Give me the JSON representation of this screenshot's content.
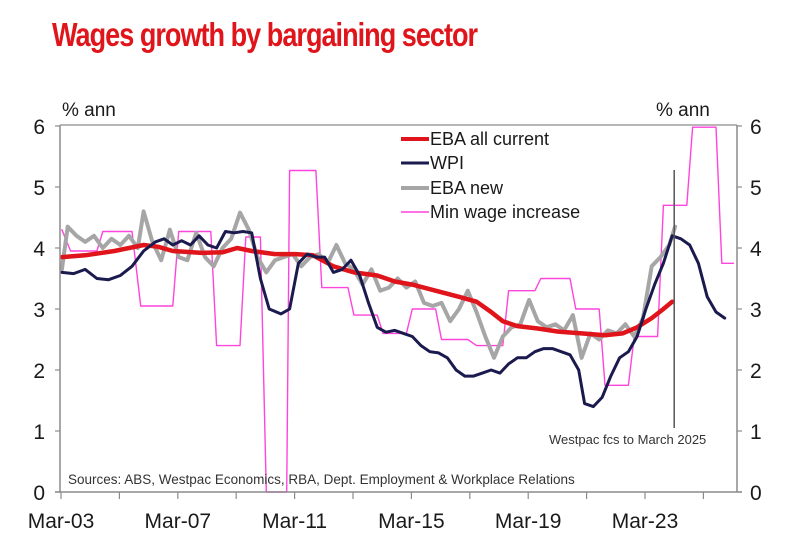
{
  "chart_data": {
    "type": "line",
    "title": "Wages growth by bargaining sector",
    "ylabel_left": "% ann",
    "ylabel_right": "% ann",
    "xlabel": "",
    "ylim": [
      0,
      6
    ],
    "yticks": [
      0,
      1,
      2,
      3,
      4,
      5,
      6
    ],
    "xlim": [
      2003.17,
      2026.4
    ],
    "xticks": [
      2003.17,
      2005.17,
      2007.17,
      2009.17,
      2011.17,
      2013.17,
      2015.17,
      2017.17,
      2019.17,
      2021.17,
      2023.17,
      2025.17
    ],
    "xtick_labels": [
      {
        "x": 2003.17,
        "label": "Mar-03"
      },
      {
        "x": 2007.17,
        "label": "Mar-07"
      },
      {
        "x": 2011.17,
        "label": "Mar-11"
      },
      {
        "x": 2015.17,
        "label": "Mar-15"
      },
      {
        "x": 2019.17,
        "label": "Mar-19"
      },
      {
        "x": 2023.17,
        "label": "Mar-23"
      }
    ],
    "grid": false,
    "legend": {
      "position": "top-center",
      "entries": [
        "EBA all current",
        "WPI",
        "EBA new",
        "Min wage increase"
      ]
    },
    "annotations": [
      {
        "text": "Westpac fcs to March 2025",
        "x": 2024.17
      },
      {
        "text": "Sources: ABS, Westpac Economics, RBA, Dept. Employment & Workplace Relations"
      }
    ],
    "forecast_marker_x": 2024.17,
    "series": [
      {
        "name": "EBA all current",
        "color": "#e0151b",
        "points": [
          [
            2003.2,
            3.85
          ],
          [
            2004.0,
            3.88
          ],
          [
            2005.0,
            3.95
          ],
          [
            2006.0,
            4.05
          ],
          [
            2006.5,
            4.02
          ],
          [
            2007.0,
            3.95
          ],
          [
            2008.0,
            3.92
          ],
          [
            2008.7,
            3.93
          ],
          [
            2009.2,
            4.0
          ],
          [
            2009.7,
            3.95
          ],
          [
            2010.5,
            3.9
          ],
          [
            2011.2,
            3.9
          ],
          [
            2011.8,
            3.88
          ],
          [
            2012.5,
            3.7
          ],
          [
            2013.2,
            3.6
          ],
          [
            2014.0,
            3.55
          ],
          [
            2014.6,
            3.45
          ],
          [
            2015.2,
            3.4
          ],
          [
            2016.0,
            3.3
          ],
          [
            2016.8,
            3.2
          ],
          [
            2017.4,
            3.12
          ],
          [
            2017.9,
            2.95
          ],
          [
            2018.3,
            2.8
          ],
          [
            2018.8,
            2.72
          ],
          [
            2019.5,
            2.68
          ],
          [
            2020.2,
            2.63
          ],
          [
            2021.0,
            2.6
          ],
          [
            2021.8,
            2.57
          ],
          [
            2022.4,
            2.6
          ],
          [
            2022.9,
            2.7
          ],
          [
            2023.4,
            2.85
          ],
          [
            2023.8,
            3.0
          ],
          [
            2024.1,
            3.12
          ]
        ]
      },
      {
        "name": "WPI",
        "color": "#1a1a4e",
        "points": [
          [
            2003.2,
            3.6
          ],
          [
            2003.6,
            3.58
          ],
          [
            2004.0,
            3.65
          ],
          [
            2004.4,
            3.5
          ],
          [
            2004.8,
            3.48
          ],
          [
            2005.2,
            3.55
          ],
          [
            2005.6,
            3.7
          ],
          [
            2006.0,
            3.95
          ],
          [
            2006.4,
            4.1
          ],
          [
            2006.7,
            4.15
          ],
          [
            2007.0,
            4.05
          ],
          [
            2007.3,
            4.12
          ],
          [
            2007.6,
            4.05
          ],
          [
            2007.9,
            4.2
          ],
          [
            2008.2,
            4.05
          ],
          [
            2008.5,
            4.0
          ],
          [
            2008.8,
            4.27
          ],
          [
            2009.1,
            4.25
          ],
          [
            2009.4,
            4.27
          ],
          [
            2009.7,
            4.25
          ],
          [
            2010.0,
            3.5
          ],
          [
            2010.3,
            3.0
          ],
          [
            2010.7,
            2.92
          ],
          [
            2011.0,
            3.0
          ],
          [
            2011.3,
            3.75
          ],
          [
            2011.6,
            3.9
          ],
          [
            2011.9,
            3.85
          ],
          [
            2012.2,
            3.85
          ],
          [
            2012.5,
            3.6
          ],
          [
            2012.8,
            3.65
          ],
          [
            2013.1,
            3.8
          ],
          [
            2013.4,
            3.55
          ],
          [
            2013.7,
            3.1
          ],
          [
            2014.0,
            2.7
          ],
          [
            2014.3,
            2.62
          ],
          [
            2014.6,
            2.65
          ],
          [
            2014.9,
            2.6
          ],
          [
            2015.2,
            2.55
          ],
          [
            2015.5,
            2.4
          ],
          [
            2015.8,
            2.3
          ],
          [
            2016.1,
            2.28
          ],
          [
            2016.4,
            2.2
          ],
          [
            2016.7,
            2.0
          ],
          [
            2017.0,
            1.9
          ],
          [
            2017.3,
            1.9
          ],
          [
            2017.6,
            1.95
          ],
          [
            2017.9,
            2.0
          ],
          [
            2018.2,
            1.95
          ],
          [
            2018.5,
            2.1
          ],
          [
            2018.8,
            2.2
          ],
          [
            2019.1,
            2.2
          ],
          [
            2019.4,
            2.3
          ],
          [
            2019.7,
            2.35
          ],
          [
            2020.0,
            2.35
          ],
          [
            2020.3,
            2.3
          ],
          [
            2020.6,
            2.25
          ],
          [
            2020.9,
            2.0
          ],
          [
            2021.1,
            1.45
          ],
          [
            2021.4,
            1.4
          ],
          [
            2021.7,
            1.55
          ],
          [
            2022.0,
            1.9
          ],
          [
            2022.3,
            2.2
          ],
          [
            2022.6,
            2.3
          ],
          [
            2022.9,
            2.55
          ],
          [
            2023.2,
            3.0
          ],
          [
            2023.5,
            3.4
          ],
          [
            2023.8,
            3.75
          ],
          [
            2024.1,
            4.2
          ],
          [
            2024.4,
            4.15
          ],
          [
            2024.7,
            4.05
          ],
          [
            2025.0,
            3.75
          ],
          [
            2025.3,
            3.2
          ],
          [
            2025.6,
            2.95
          ],
          [
            2025.9,
            2.85
          ]
        ]
      },
      {
        "name": "EBA new",
        "color": "#a6a6a6",
        "points": [
          [
            2003.2,
            3.65
          ],
          [
            2003.4,
            4.35
          ],
          [
            2003.7,
            4.2
          ],
          [
            2004.0,
            4.1
          ],
          [
            2004.3,
            4.2
          ],
          [
            2004.6,
            4.0
          ],
          [
            2004.9,
            4.15
          ],
          [
            2005.2,
            4.05
          ],
          [
            2005.5,
            4.2
          ],
          [
            2005.8,
            4.0
          ],
          [
            2006.0,
            4.6
          ],
          [
            2006.3,
            4.1
          ],
          [
            2006.6,
            3.8
          ],
          [
            2006.9,
            4.3
          ],
          [
            2007.2,
            3.85
          ],
          [
            2007.5,
            3.8
          ],
          [
            2007.8,
            4.25
          ],
          [
            2008.1,
            3.85
          ],
          [
            2008.4,
            3.7
          ],
          [
            2008.7,
            4.0
          ],
          [
            2009.0,
            4.15
          ],
          [
            2009.3,
            4.58
          ],
          [
            2009.6,
            4.3
          ],
          [
            2009.9,
            3.85
          ],
          [
            2010.2,
            3.6
          ],
          [
            2010.5,
            3.8
          ],
          [
            2010.8,
            3.85
          ],
          [
            2011.1,
            3.9
          ],
          [
            2011.4,
            3.7
          ],
          [
            2011.7,
            3.85
          ],
          [
            2012.0,
            3.9
          ],
          [
            2012.3,
            3.75
          ],
          [
            2012.6,
            4.05
          ],
          [
            2012.9,
            3.75
          ],
          [
            2013.2,
            3.65
          ],
          [
            2013.5,
            3.4
          ],
          [
            2013.8,
            3.65
          ],
          [
            2014.1,
            3.3
          ],
          [
            2014.4,
            3.35
          ],
          [
            2014.7,
            3.5
          ],
          [
            2015.0,
            3.35
          ],
          [
            2015.3,
            3.45
          ],
          [
            2015.6,
            3.1
          ],
          [
            2015.9,
            3.05
          ],
          [
            2016.2,
            3.1
          ],
          [
            2016.5,
            2.8
          ],
          [
            2016.8,
            3.0
          ],
          [
            2017.1,
            3.3
          ],
          [
            2017.4,
            2.95
          ],
          [
            2017.7,
            2.55
          ],
          [
            2018.0,
            2.2
          ],
          [
            2018.3,
            2.55
          ],
          [
            2018.6,
            2.7
          ],
          [
            2018.9,
            2.75
          ],
          [
            2019.2,
            3.15
          ],
          [
            2019.5,
            2.8
          ],
          [
            2019.8,
            2.7
          ],
          [
            2020.1,
            2.75
          ],
          [
            2020.4,
            2.65
          ],
          [
            2020.7,
            2.9
          ],
          [
            2021.0,
            2.2
          ],
          [
            2021.3,
            2.6
          ],
          [
            2021.6,
            2.5
          ],
          [
            2021.9,
            2.65
          ],
          [
            2022.2,
            2.6
          ],
          [
            2022.5,
            2.75
          ],
          [
            2022.8,
            2.55
          ],
          [
            2023.1,
            2.85
          ],
          [
            2023.4,
            3.7
          ],
          [
            2023.7,
            3.85
          ],
          [
            2024.0,
            4.05
          ],
          [
            2024.2,
            4.35
          ]
        ]
      },
      {
        "name": "Min wage increase",
        "color": "#ff44dd",
        "points": [
          [
            2003.2,
            4.3
          ],
          [
            2003.5,
            3.95
          ],
          [
            2004.4,
            3.95
          ],
          [
            2004.6,
            4.27
          ],
          [
            2005.6,
            4.27
          ],
          [
            2005.9,
            3.05
          ],
          [
            2007.0,
            3.05
          ],
          [
            2007.2,
            4.27
          ],
          [
            2008.3,
            4.27
          ],
          [
            2008.5,
            2.4
          ],
          [
            2009.3,
            2.4
          ],
          [
            2009.5,
            4.18
          ],
          [
            2010.0,
            4.18
          ],
          [
            2010.2,
            0.0
          ],
          [
            2010.9,
            0.0
          ],
          [
            2011.0,
            5.27
          ],
          [
            2011.9,
            5.27
          ],
          [
            2012.1,
            3.35
          ],
          [
            2013.0,
            3.35
          ],
          [
            2013.2,
            2.9
          ],
          [
            2014.0,
            2.9
          ],
          [
            2014.2,
            2.6
          ],
          [
            2015.0,
            2.6
          ],
          [
            2015.2,
            3.0
          ],
          [
            2016.0,
            3.0
          ],
          [
            2016.2,
            2.5
          ],
          [
            2017.1,
            2.5
          ],
          [
            2017.4,
            2.4
          ],
          [
            2018.3,
            2.4
          ],
          [
            2018.5,
            3.3
          ],
          [
            2019.4,
            3.3
          ],
          [
            2019.6,
            3.5
          ],
          [
            2020.6,
            3.5
          ],
          [
            2020.8,
            3.0
          ],
          [
            2021.6,
            3.0
          ],
          [
            2021.8,
            1.75
          ],
          [
            2022.6,
            1.75
          ],
          [
            2022.8,
            2.55
          ],
          [
            2023.6,
            2.55
          ],
          [
            2023.8,
            4.7
          ],
          [
            2024.6,
            4.7
          ],
          [
            2024.8,
            5.98
          ],
          [
            2025.6,
            5.98
          ],
          [
            2025.8,
            3.75
          ],
          [
            2026.2,
            3.75
          ]
        ]
      }
    ]
  }
}
